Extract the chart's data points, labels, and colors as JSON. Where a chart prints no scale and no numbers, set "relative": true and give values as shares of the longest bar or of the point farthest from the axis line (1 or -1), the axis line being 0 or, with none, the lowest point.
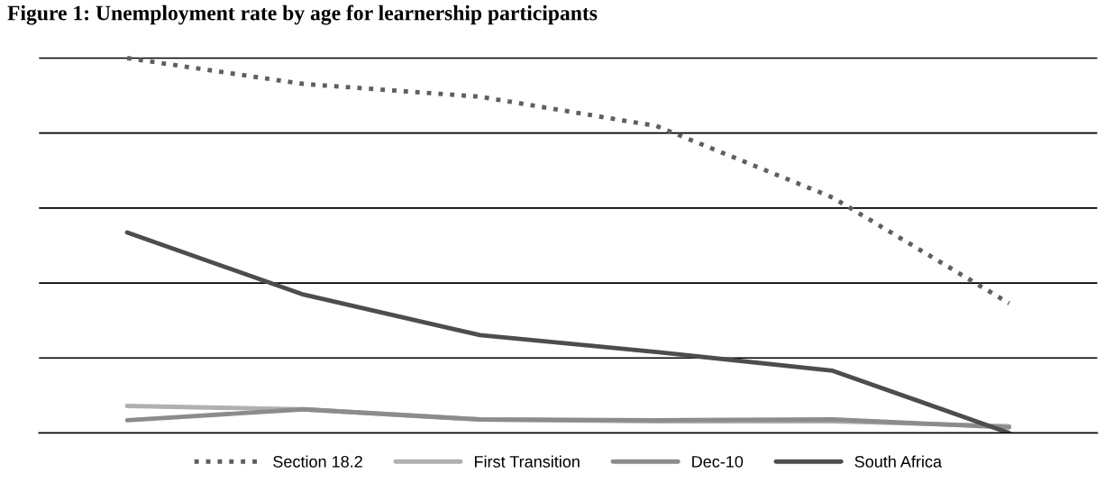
{
  "chart_data": {
    "type": "line",
    "title": "Figure 1: Unemployment rate by age for learnership participants",
    "relative": true,
    "categories": [
      null,
      null,
      null,
      null,
      null,
      null
    ],
    "grid": "y",
    "legend": "bottom",
    "marker": "none",
    "series": [
      {
        "name": "Section 18.2",
        "color": "#5f5f5f",
        "line_style": "dotted",
        "values": [
          1,
          0.931,
          0.897,
          0.819,
          0.628,
          0.346
        ]
      },
      {
        "name": "First Transition",
        "color": "#b0b0b0",
        "values": [
          0.072,
          0.063,
          0.036,
          0.031,
          0.031,
          0.018
        ]
      },
      {
        "name": "Dec-10",
        "color": "#8c8c8c",
        "values": [
          0.034,
          0.063,
          0.036,
          0.034,
          0.036,
          0.015
        ]
      },
      {
        "name": "South Africa",
        "color": "#4d4d4d",
        "values": [
          0.535,
          0.369,
          0.261,
          0.216,
          0.166,
          0
        ]
      }
    ]
  }
}
